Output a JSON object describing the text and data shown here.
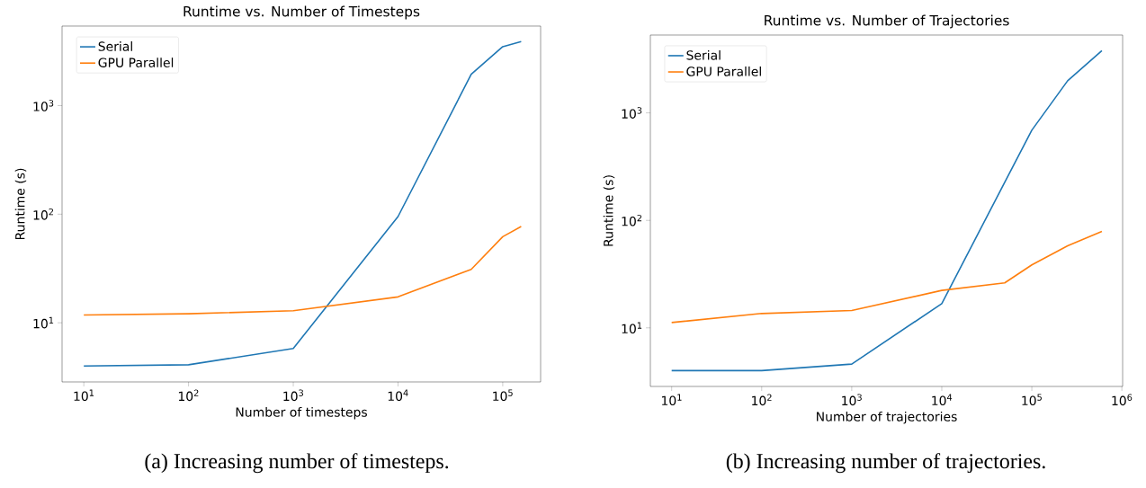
{
  "chart_data": [
    {
      "type": "line",
      "title": "Runtime vs. Number of Timesteps",
      "xlabel": "Number of timesteps",
      "ylabel": "Runtime (s)",
      "annotations": [
        "(a) Increasing number of timesteps."
      ],
      "x": [
        10,
        100,
        1000,
        10000,
        50000,
        100000,
        150000
      ],
      "series": [
        {
          "name": "Serial",
          "color": "#1f77b4",
          "values": [
            4.0,
            4.1,
            5.8,
            95,
            1940,
            3490,
            3880
          ]
        },
        {
          "name": "GPU Parallel",
          "color": "#ff7f0e",
          "values": [
            11.8,
            12.1,
            12.9,
            17.3,
            31,
            62,
            77
          ]
        }
      ],
      "log": "xy",
      "xlim": [
        6.2,
        230000
      ],
      "ylim": [
        2.85,
        5400
      ],
      "xticks": [
        {
          "value": 10,
          "label": "10$^{1}$"
        },
        {
          "value": 100,
          "label": "10$^{2}$"
        },
        {
          "value": 1000,
          "label": "10$^{3}$"
        },
        {
          "value": 10000,
          "label": "10$^{4}$"
        },
        {
          "value": 100000,
          "label": "10$^{5}$"
        }
      ],
      "yticks": [
        {
          "value": 10,
          "label": "10$^{1}$"
        },
        {
          "value": 100,
          "label": "10$^{2}$"
        },
        {
          "value": 1000,
          "label": "10$^{3}$"
        }
      ],
      "legend": "top left",
      "grid": false
    },
    {
      "type": "line",
      "title": "Runtime vs. Number of Trajectories",
      "xlabel": "Number of trajectories",
      "ylabel": "Runtime (s)",
      "annotations": [
        "(b) Increasing number of trajectories."
      ],
      "x": [
        10,
        100,
        1000,
        10000,
        50000,
        100000,
        250000,
        600000
      ],
      "series": [
        {
          "name": "Serial",
          "color": "#1f77b4",
          "values": [
            4.0,
            4.0,
            4.6,
            16.8,
            226,
            690,
            1990,
            3800
          ]
        },
        {
          "name": "GPU Parallel",
          "color": "#ff7f0e",
          "values": [
            11.2,
            13.6,
            14.5,
            22.3,
            26.2,
            38.5,
            58,
            79
          ]
        }
      ],
      "log": "xy",
      "xlim": [
        5.8,
        1020000
      ],
      "ylim": [
        2.85,
        5300
      ],
      "xticks": [
        {
          "value": 10,
          "label": "10$^{1}$"
        },
        {
          "value": 100,
          "label": "10$^{2}$"
        },
        {
          "value": 1000,
          "label": "10$^{3}$"
        },
        {
          "value": 10000,
          "label": "10$^{4}$"
        },
        {
          "value": 100000,
          "label": "10$^{5}$"
        },
        {
          "value": 1000000,
          "label": "10$^{6}$"
        }
      ],
      "yticks": [
        {
          "value": 10,
          "label": "10$^{1}$"
        },
        {
          "value": 100,
          "label": "10$^{2}$"
        },
        {
          "value": 1000,
          "label": "10$^{3}$"
        }
      ],
      "legend": "top left",
      "grid": false
    }
  ]
}
